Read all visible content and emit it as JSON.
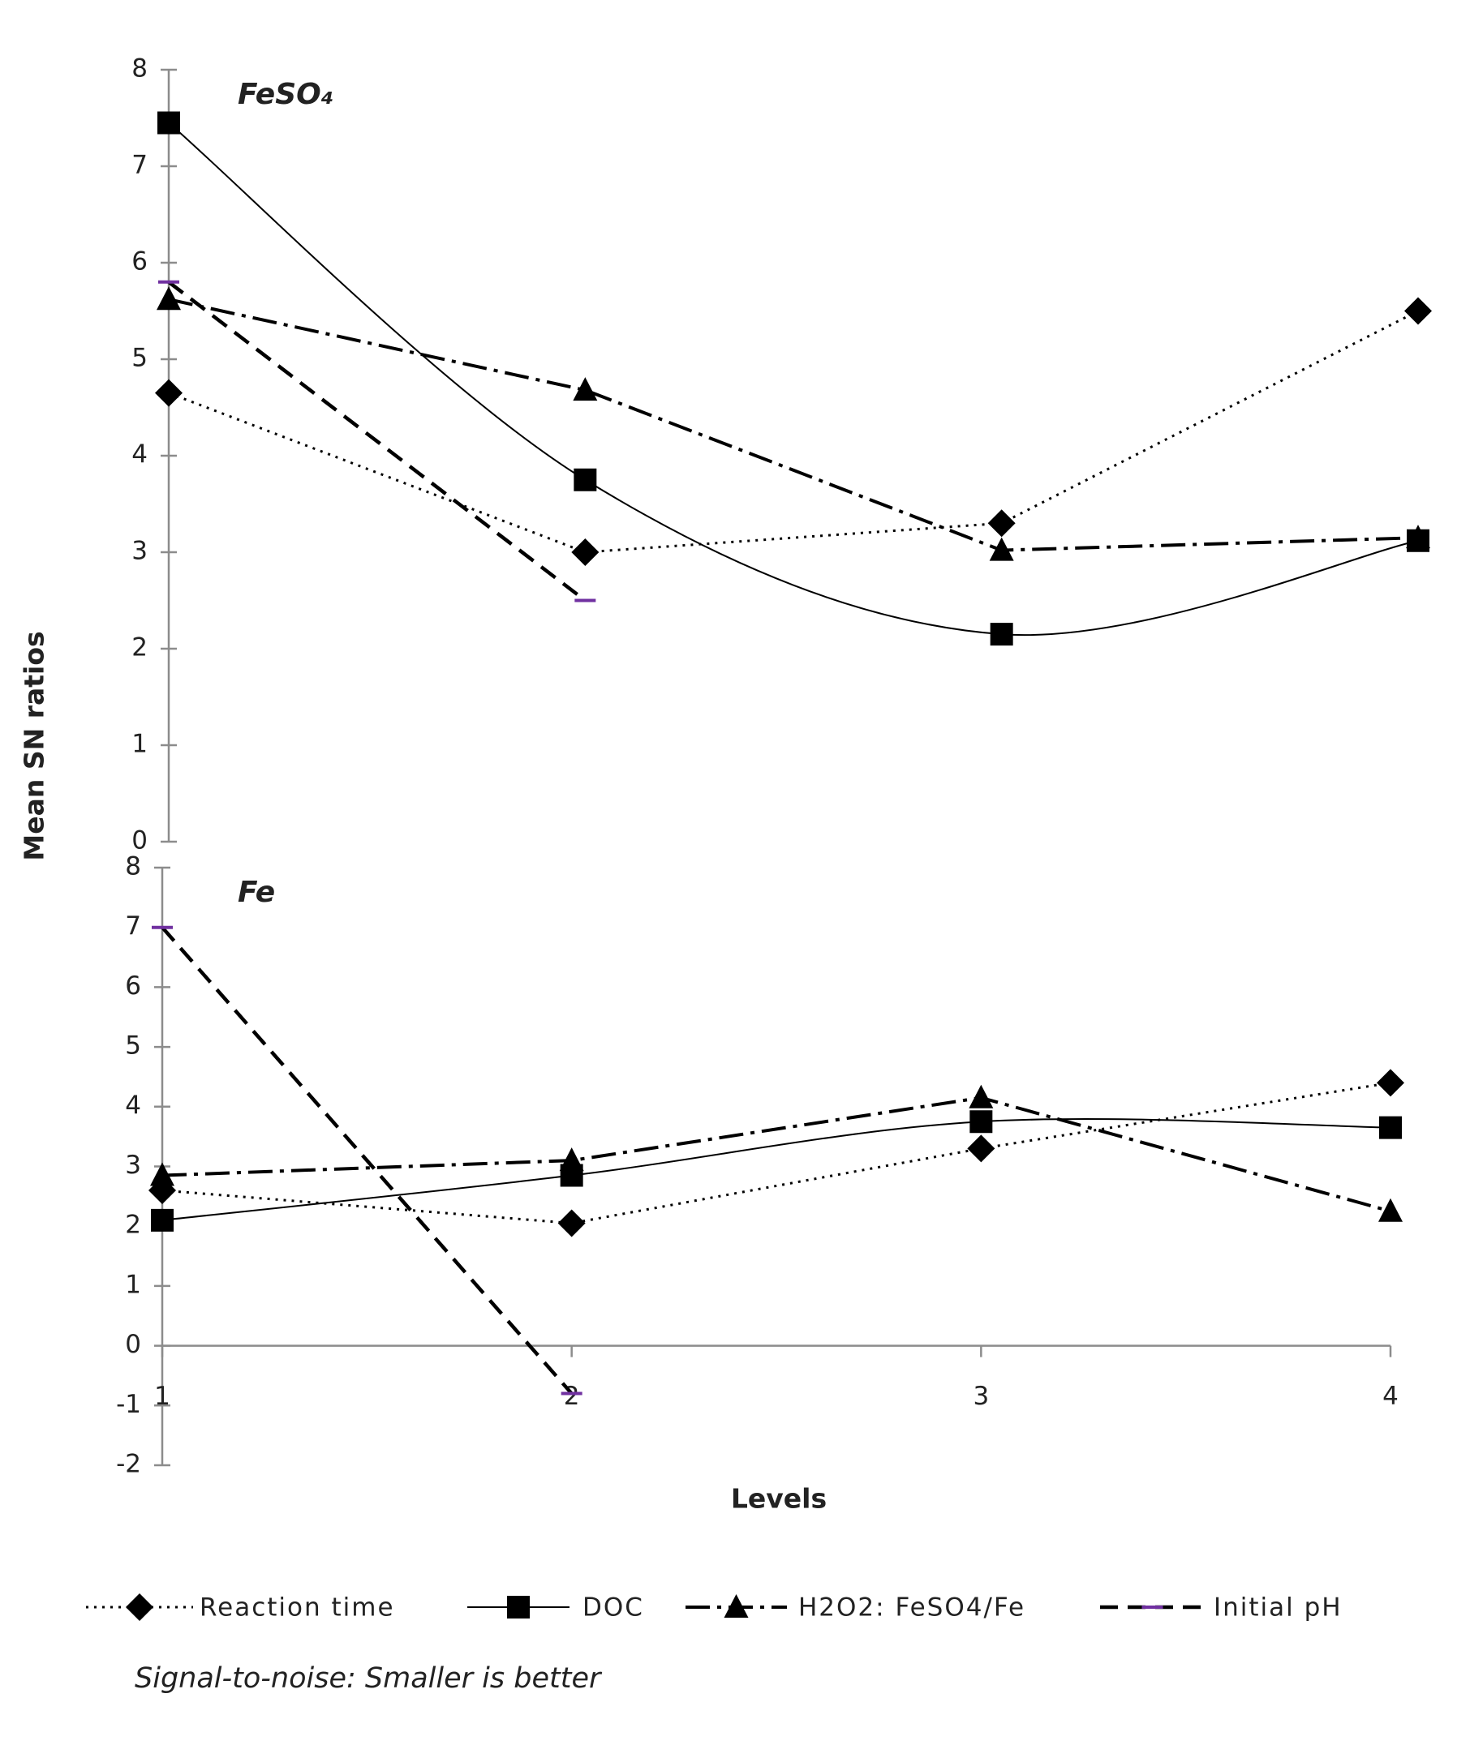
{
  "ylabel": "Mean SN ratios",
  "xlabel": "Levels",
  "note": "Signal-to-noise:  Smaller  is better",
  "chart_data": [
    {
      "type": "line",
      "title": "FeSO₄",
      "x": [
        1,
        2,
        3,
        4
      ],
      "xlim": [
        1,
        4
      ],
      "ylim": [
        0,
        8
      ],
      "yticks": [
        0,
        1,
        2,
        3,
        4,
        5,
        6,
        7,
        8
      ],
      "series": [
        {
          "name": "Reaction time",
          "color": "#000000",
          "marker": "diamond",
          "line": "dotted",
          "values": [
            4.65,
            3.0,
            3.3,
            5.5
          ]
        },
        {
          "name": "DOC",
          "color": "#000000",
          "marker": "square",
          "line": "smooth",
          "values": [
            7.45,
            3.75,
            2.15,
            3.12
          ]
        },
        {
          "name": "H2O2: FeSO4/Fe",
          "color": "#000000",
          "marker": "triangle",
          "line": "dashdot",
          "values": [
            5.62,
            4.68,
            3.02,
            3.15
          ]
        },
        {
          "name": "Initial pH",
          "color": "#000000",
          "marker": "dash",
          "marker_color": "#7030a0",
          "line": "dashed",
          "values": [
            5.8,
            2.5,
            null,
            null
          ]
        }
      ]
    },
    {
      "type": "line",
      "title": "Fe",
      "x": [
        1,
        2,
        3,
        4
      ],
      "xlim": [
        1,
        4
      ],
      "xticks": [
        1,
        2,
        3,
        4
      ],
      "ylim": [
        -2,
        8
      ],
      "yticks": [
        -2,
        -1,
        0,
        1,
        2,
        3,
        4,
        5,
        6,
        7,
        8
      ],
      "series": [
        {
          "name": "Reaction time",
          "color": "#000000",
          "marker": "diamond",
          "line": "dotted",
          "values": [
            2.6,
            2.05,
            3.3,
            4.4
          ]
        },
        {
          "name": "DOC",
          "color": "#000000",
          "marker": "square",
          "line": "smooth",
          "values": [
            2.1,
            2.85,
            3.75,
            3.65
          ]
        },
        {
          "name": "H2O2: FeSO4/Fe",
          "color": "#000000",
          "marker": "triangle",
          "line": "dashdot",
          "values": [
            2.85,
            3.1,
            4.15,
            2.25
          ]
        },
        {
          "name": "Initial pH",
          "color": "#000000",
          "marker": "dash",
          "marker_color": "#7030a0",
          "line": "dashed",
          "values": [
            7.0,
            -0.8,
            null,
            null
          ]
        }
      ]
    }
  ]
}
